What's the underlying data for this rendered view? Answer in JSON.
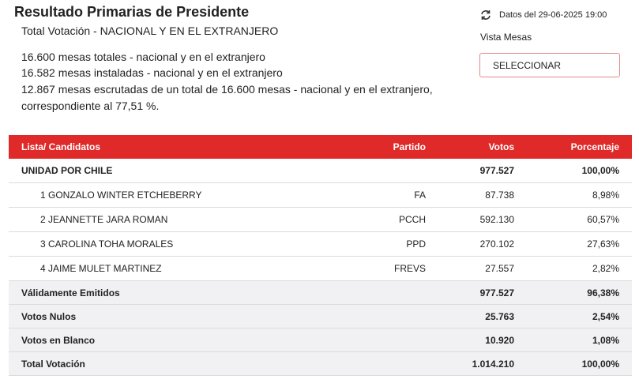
{
  "header": {
    "title": "Resultado Primarias de Presidente",
    "subtitle": "Total Votación - NACIONAL Y EN EL EXTRANJERO",
    "lines": [
      "16.600 mesas totales - nacional y en el extranjero",
      "16.582 mesas instaladas - nacional y en el extranjero",
      "12.867 mesas escrutadas de un total de 16.600 mesas - nacional y en el extranjero,",
      "correspondiente al 77,51 %."
    ]
  },
  "meta": {
    "date": "Datos del 29-06-2025 19:00",
    "vista_label": "Vista Mesas",
    "button": "SELECCIONAR"
  },
  "table": {
    "columns": [
      "Lista/ Candidatos",
      "Partido",
      "Votos",
      "Porcentaje"
    ],
    "rows": [
      [
        "UNIDAD POR CHILE",
        null,
        "977.527",
        "100,00%"
      ],
      [
        "1 GONZALO WINTER ETCHEBERRY",
        "FA",
        "87.738",
        "8,98%"
      ],
      [
        "2 JEANNETTE JARA ROMAN",
        "PCCH",
        "592.130",
        "60,57%"
      ],
      [
        "3 CAROLINA TOHA MORALES",
        "PPD",
        "270.102",
        "27,63%"
      ],
      [
        "4 JAIME MULET MARTINEZ",
        "FREVS",
        "27.557",
        "2,82%"
      ],
      [
        "Válidamente Emitidos",
        null,
        "977.527",
        "96,38%"
      ],
      [
        "Votos Nulos",
        null,
        "25.763",
        "2,54%"
      ],
      [
        "Votos en Blanco",
        null,
        "10.920",
        "1,08%"
      ],
      [
        "Total Votación",
        null,
        "1.014.210",
        "100,00%"
      ]
    ]
  }
}
